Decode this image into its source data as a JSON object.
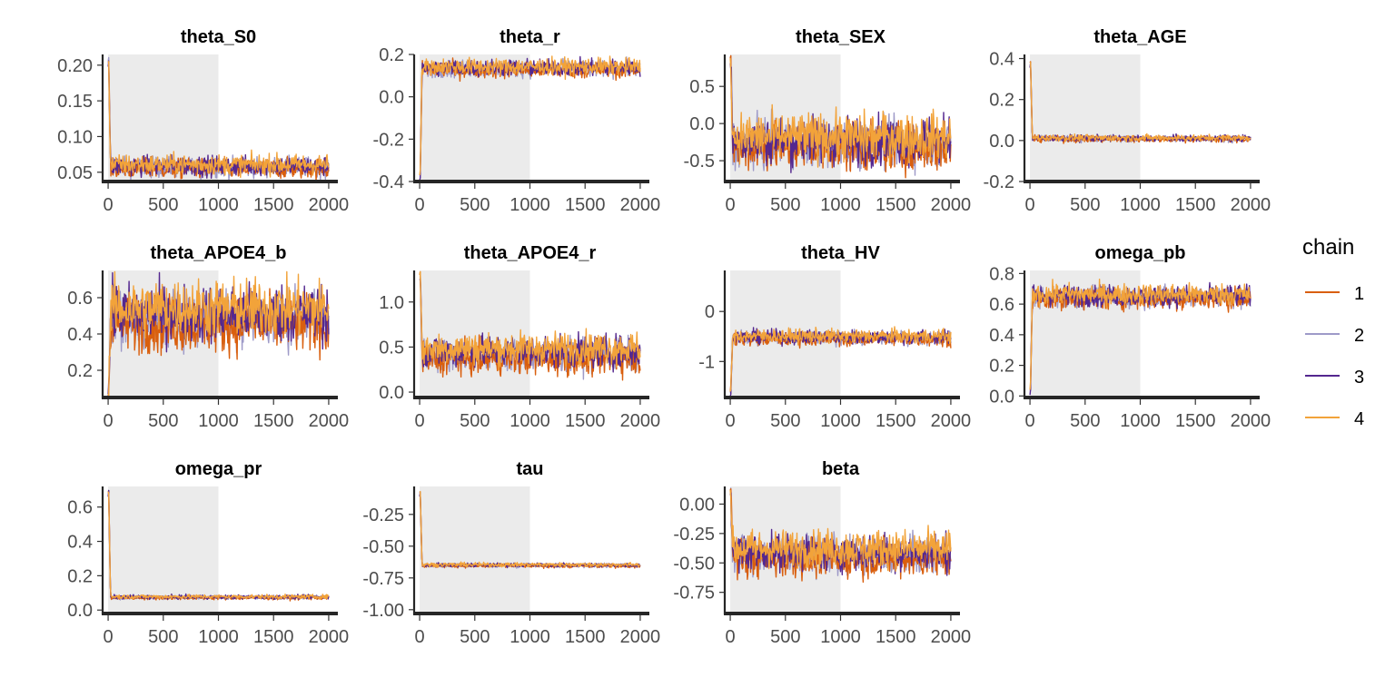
{
  "chart_data": {
    "type": "line",
    "description_free": true,
    "facet_count": 11,
    "x_ticks": [
      0,
      500,
      1000,
      1500,
      2000
    ],
    "x_range": [
      -50,
      2050
    ],
    "warmup_shade_until": 1000,
    "shade_color": "#ebebeb",
    "legend": {
      "title": "chain",
      "placement": "right",
      "entries": [
        {
          "label": "1",
          "color": "#d95f0e"
        },
        {
          "label": "2",
          "color": "#9e9ac8"
        },
        {
          "label": "3",
          "color": "#54278f"
        },
        {
          "label": "4",
          "color": "#f2a33a"
        }
      ]
    },
    "panels": [
      {
        "title": "theta_S0",
        "ylim": [
          0.037,
          0.215
        ],
        "yticks": [
          0.05,
          0.1,
          0.15,
          0.2
        ],
        "ylabels": [
          "0.05",
          "0.10",
          "0.15",
          "0.20"
        ],
        "initial": 0.205,
        "settle": 0.058,
        "noise": 0.007,
        "chain_spread": 0.002
      },
      {
        "title": "theta_r",
        "ylim": [
          -0.4,
          0.2
        ],
        "yticks": [
          -0.4,
          -0.2,
          0.0,
          0.2
        ],
        "ylabels": [
          "-0.4",
          "-0.2",
          "0.0",
          "0.2"
        ],
        "initial": -0.37,
        "settle": 0.135,
        "noise": 0.02,
        "chain_spread": 0.005
      },
      {
        "title": "theta_SEX",
        "ylim": [
          -0.78,
          0.93
        ],
        "yticks": [
          -0.5,
          0.0,
          0.5
        ],
        "ylabels": [
          "-0.5",
          "0.0",
          "0.5"
        ],
        "initial": 0.88,
        "settle": -0.25,
        "noise": 0.16,
        "chain_spread": 0.05
      },
      {
        "title": "theta_AGE",
        "ylim": [
          -0.2,
          0.42
        ],
        "yticks": [
          -0.2,
          0.0,
          0.2,
          0.4
        ],
        "ylabels": [
          "-0.2",
          "0.0",
          "0.2",
          "0.4"
        ],
        "initial": 0.38,
        "settle": 0.01,
        "noise": 0.008,
        "chain_spread": 0.002
      },
      {
        "title": "theta_APOE4_b",
        "ylim": [
          0.05,
          0.75
        ],
        "yticks": [
          0.2,
          0.4,
          0.6
        ],
        "ylabels": [
          "0.2",
          "0.4",
          "0.6"
        ],
        "initial": 0.07,
        "settle": 0.5,
        "noise": 0.08,
        "chain_spread": 0.03
      },
      {
        "title": "theta_APOE4_r",
        "ylim": [
          -0.06,
          1.35
        ],
        "yticks": [
          0.0,
          0.5,
          1.0
        ],
        "ylabels": [
          "0.0",
          "0.5",
          "1.0"
        ],
        "initial": 1.3,
        "settle": 0.43,
        "noise": 0.09,
        "chain_spread": 0.04
      },
      {
        "title": "theta_HV",
        "ylim": [
          -1.72,
          0.82
        ],
        "yticks": [
          -1,
          0
        ],
        "ylabels": [
          "-1",
          "0"
        ],
        "initial": -1.6,
        "settle": -0.52,
        "noise": 0.07,
        "chain_spread": 0.02
      },
      {
        "title": "omega_pb",
        "ylim": [
          -0.01,
          0.82
        ],
        "yticks": [
          0.0,
          0.2,
          0.4,
          0.6,
          0.8
        ],
        "ylabels": [
          "0.0",
          "0.2",
          "0.4",
          "0.6",
          "0.8"
        ],
        "initial": 0.04,
        "settle": 0.65,
        "noise": 0.035,
        "chain_spread": 0.01
      },
      {
        "title": "omega_pr",
        "ylim": [
          -0.02,
          0.72
        ],
        "yticks": [
          0.0,
          0.2,
          0.4,
          0.6
        ],
        "ylabels": [
          "0.0",
          "0.2",
          "0.4",
          "0.6"
        ],
        "initial": 0.69,
        "settle": 0.075,
        "noise": 0.006,
        "chain_spread": 0.002
      },
      {
        "title": "tau",
        "ylim": [
          -1.03,
          -0.03
        ],
        "yticks": [
          -1.0,
          -0.75,
          -0.5,
          -0.25
        ],
        "ylabels": [
          "-1.00",
          "-0.75",
          "-0.50",
          "-0.25"
        ],
        "initial": -0.07,
        "settle": -0.65,
        "noise": 0.008,
        "chain_spread": 0.003
      },
      {
        "title": "beta",
        "ylim": [
          -0.93,
          0.15
        ],
        "yticks": [
          -0.75,
          -0.5,
          -0.25,
          0.0
        ],
        "ylabels": [
          "-0.75",
          "-0.50",
          "-0.25",
          "0.00"
        ],
        "initial": 0.12,
        "settle": -0.42,
        "noise": 0.08,
        "chain_spread": 0.03
      }
    ]
  }
}
